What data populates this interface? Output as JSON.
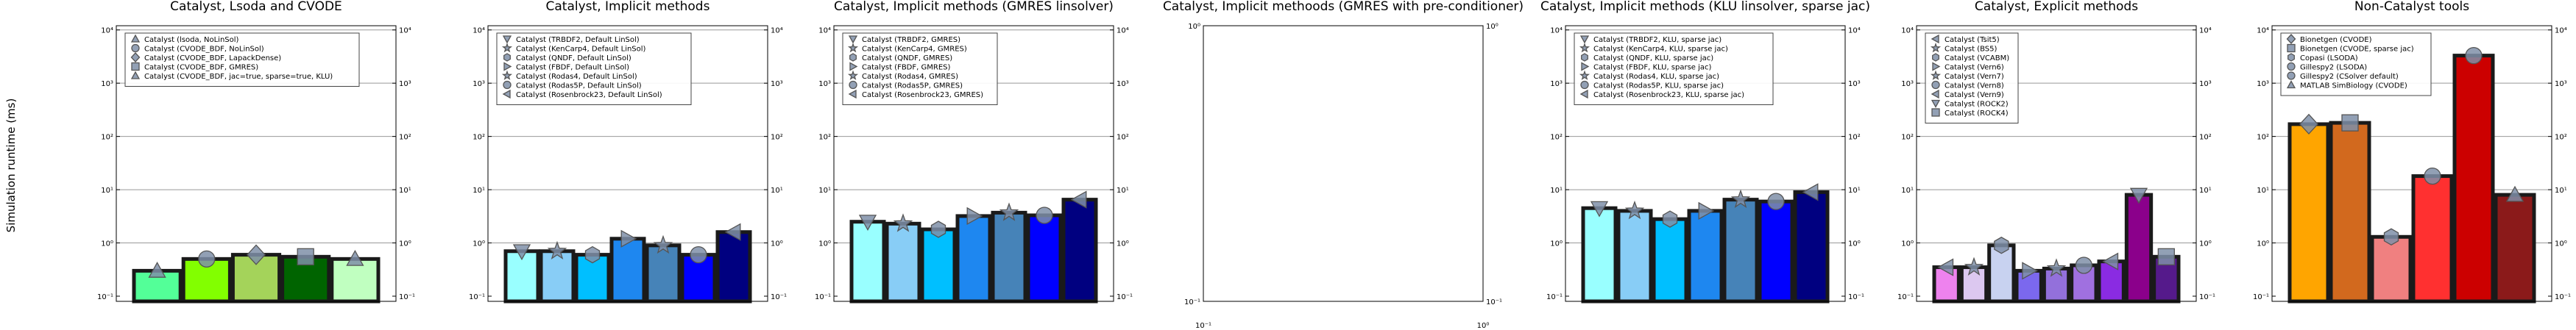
{
  "figure": {
    "ylabel": "Simulation runtime (ms)"
  },
  "colors": {
    "p1": [
      "#53ff98",
      "#82ff00",
      "#a4d35a",
      "#006400",
      "#c0ffc0"
    ],
    "p2": [
      "#99ffff",
      "#88cdf6",
      "#00bfff",
      "#1e87f0",
      "#4683b8",
      "#0000ff",
      "#000080"
    ],
    "p7": [
      "#ffa500",
      "#d2691e",
      "#f08080",
      "#ff3030",
      "#cc0000",
      "#8b1a1a"
    ]
  },
  "chart_data": [
    {
      "type": "bar",
      "title": "Catalyst, Lsoda and CVODE",
      "yscale": "log",
      "ylim": [
        0.08,
        12000
      ],
      "y_ticks": [
        "10⁻¹",
        "10⁰",
        "10¹",
        "10²",
        "10³",
        "10⁴"
      ],
      "legend_position": "upper-left",
      "series": [
        {
          "name": "Catalyst (lsoda, NoLinSol)",
          "value": 0.3,
          "color": "#53ff98",
          "marker": "triangle-up"
        },
        {
          "name": "Catalyst (CVODE_BDF, NoLinSol)",
          "value": 0.5,
          "color": "#82ff00",
          "marker": "circle"
        },
        {
          "name": "Catalyst (CVODE_BDF, LapackDense)",
          "value": 0.6,
          "color": "#a4d35a",
          "marker": "diamond"
        },
        {
          "name": "Catalyst (CVODE_BDF, GMRES)",
          "value": 0.55,
          "color": "#006400",
          "marker": "square"
        },
        {
          "name": "Catalyst (CVODE_BDF, jac=true, sparse=true, KLU)",
          "value": 0.5,
          "color": "#c0ffc0",
          "marker": "triangle-up"
        }
      ]
    },
    {
      "type": "bar",
      "title": "Catalyst, Implicit methods",
      "yscale": "log",
      "ylim": [
        0.08,
        12000
      ],
      "y_ticks": [
        "10⁻¹",
        "10⁰",
        "10¹",
        "10²",
        "10³",
        "10⁴"
      ],
      "legend_position": "upper-left",
      "series": [
        {
          "name": "Catalyst (TRBDF2, Default LinSol)",
          "value": 0.7,
          "color": "#99ffff",
          "marker": "triangle-down"
        },
        {
          "name": "Catalyst (KenCarp4, Default LinSol)",
          "value": 0.7,
          "color": "#88cdf6",
          "marker": "star"
        },
        {
          "name": "Catalyst (QNDF, Default LinSol)",
          "value": 0.6,
          "color": "#00bfff",
          "marker": "hexagon"
        },
        {
          "name": "Catalyst (FBDF, Default LinSol)",
          "value": 1.2,
          "color": "#1e87f0",
          "marker": "triangle-right"
        },
        {
          "name": "Catalyst (Rodas4, Default LinSol)",
          "value": 0.9,
          "color": "#4683b8",
          "marker": "star"
        },
        {
          "name": "Catalyst (Rodas5P, Default LinSol)",
          "value": 0.6,
          "color": "#0000ff",
          "marker": "circle"
        },
        {
          "name": "Catalyst (Rosenbrock23, Default LinSol)",
          "value": 1.6,
          "color": "#000080",
          "marker": "triangle-left"
        }
      ]
    },
    {
      "type": "bar",
      "title": "Catalyst, Implicit methods (GMRES linsolver)",
      "yscale": "log",
      "ylim": [
        0.08,
        12000
      ],
      "y_ticks": [
        "10⁻¹",
        "10⁰",
        "10¹",
        "10²",
        "10³",
        "10⁴"
      ],
      "legend_position": "upper-left",
      "series": [
        {
          "name": "Catalyst (TRBDF2, GMRES)",
          "value": 2.5,
          "color": "#99ffff",
          "marker": "triangle-down"
        },
        {
          "name": "Catalyst (KenCarp4, GMRES)",
          "value": 2.3,
          "color": "#88cdf6",
          "marker": "star"
        },
        {
          "name": "Catalyst (QNDF, GMRES)",
          "value": 1.8,
          "color": "#00bfff",
          "marker": "hexagon"
        },
        {
          "name": "Catalyst (FBDF, GMRES)",
          "value": 3.2,
          "color": "#1e87f0",
          "marker": "triangle-right"
        },
        {
          "name": "Catalyst (Rodas4, GMRES)",
          "value": 3.7,
          "color": "#4683b8",
          "marker": "star"
        },
        {
          "name": "Catalyst (Rodas5P, GMRES)",
          "value": 3.3,
          "color": "#0000ff",
          "marker": "circle"
        },
        {
          "name": "Catalyst (Rosenbrock23, GMRES)",
          "value": 6.5,
          "color": "#000080",
          "marker": "triangle-left"
        }
      ]
    },
    {
      "type": "bar",
      "title": "Catalyst, Implicit meth​oods (GMRES with pre-conditioner)",
      "yscale": "log",
      "ylim": [
        0.1,
        1
      ],
      "y_ticks": [
        "10⁻¹",
        "10⁰"
      ],
      "x_ticks": [
        "10⁻¹",
        "10⁰"
      ],
      "series": []
    },
    {
      "type": "bar",
      "title": "Catalyst, Implicit methods (KLU linsolver, sparse jac)",
      "yscale": "log",
      "ylim": [
        0.08,
        12000
      ],
      "y_ticks": [
        "10⁻¹",
        "10⁰",
        "10¹",
        "10²",
        "10³",
        "10⁴"
      ],
      "legend_position": "upper-left",
      "series": [
        {
          "name": "Catalyst (TRBDF2, KLU, sparse jac)",
          "value": 4.5,
          "color": "#99ffff",
          "marker": "triangle-down"
        },
        {
          "name": "Catalyst (KenCarp4, KLU, sparse jac)",
          "value": 4.0,
          "color": "#88cdf6",
          "marker": "star"
        },
        {
          "name": "Catalyst (QNDF, KLU, sparse jac)",
          "value": 2.8,
          "color": "#00bfff",
          "marker": "hexagon"
        },
        {
          "name": "Catalyst (FBDF, KLU, sparse jac)",
          "value": 4.0,
          "color": "#1e87f0",
          "marker": "triangle-right"
        },
        {
          "name": "Catalyst (Rodas4, KLU, sparse jac)",
          "value": 6.5,
          "color": "#4683b8",
          "marker": "star"
        },
        {
          "name": "Catalyst (Rodas5P, KLU, sparse jac)",
          "value": 6.0,
          "color": "#0000ff",
          "marker": "circle"
        },
        {
          "name": "Catalyst (Rosenbrock23, KLU, sparse jac)",
          "value": 9.0,
          "color": "#000080",
          "marker": "triangle-left"
        }
      ]
    },
    {
      "type": "bar",
      "title": "Catalyst, Explicit methods",
      "yscale": "log",
      "ylim": [
        0.08,
        12000
      ],
      "y_ticks": [
        "10⁻¹",
        "10⁰",
        "10¹",
        "10²",
        "10³",
        "10⁴"
      ],
      "legend_position": "upper-left",
      "series": [
        {
          "name": "Catalyst (Tsit5)",
          "value": 0.35,
          "color": "#ee82ee",
          "marker": "triangle-left"
        },
        {
          "name": "Catalyst (BS5)",
          "value": 0.35,
          "color": "#dcc8f0",
          "marker": "star"
        },
        {
          "name": "Catalyst (VCABM)",
          "value": 0.9,
          "color": "#c8d2f0",
          "marker": "hexagon"
        },
        {
          "name": "Catalyst (Vern6)",
          "value": 0.3,
          "color": "#7b68ee",
          "marker": "triangle-right"
        },
        {
          "name": "Catalyst (Vern7)",
          "value": 0.33,
          "color": "#9370db",
          "marker": "star"
        },
        {
          "name": "Catalyst (Vern8)",
          "value": 0.38,
          "color": "#a070e0",
          "marker": "circle"
        },
        {
          "name": "Catalyst (Vern9)",
          "value": 0.45,
          "color": "#8a2be2",
          "marker": "triangle-left"
        },
        {
          "name": "Catalyst (ROCK2)",
          "value": 8.0,
          "color": "#8b008b",
          "marker": "triangle-down"
        },
        {
          "name": "Catalyst (ROCK4)",
          "value": 0.55,
          "color": "#551a8b",
          "marker": "square"
        }
      ]
    },
    {
      "type": "bar",
      "title": "Non-Catalyst tools",
      "yscale": "log",
      "ylim": [
        0.08,
        12000
      ],
      "y_ticks": [
        "10⁻¹",
        "10⁰",
        "10¹",
        "10²",
        "10³",
        "10⁴"
      ],
      "legend_position": "upper-left",
      "series": [
        {
          "name": "Bionetgen (CVODE)",
          "value": 170,
          "color": "#ffa500",
          "marker": "diamond"
        },
        {
          "name": "Bionetgen (CVODE, sparse jac)",
          "value": 180,
          "color": "#d2691e",
          "marker": "square"
        },
        {
          "name": "Copasi (LSODA)",
          "value": 1.3,
          "color": "#f08080",
          "marker": "hexagon"
        },
        {
          "name": "Gillespy2 (LSODA)",
          "value": 18,
          "color": "#ff3030",
          "marker": "circle"
        },
        {
          "name": "Gillespy2 (CSolver default)",
          "value": 3300,
          "color": "#cc0000",
          "marker": "circle"
        },
        {
          "name": "MATLAB SimBiology (CVODE)",
          "value": 8,
          "color": "#8b1a1a",
          "marker": "triangle-up"
        }
      ]
    }
  ]
}
